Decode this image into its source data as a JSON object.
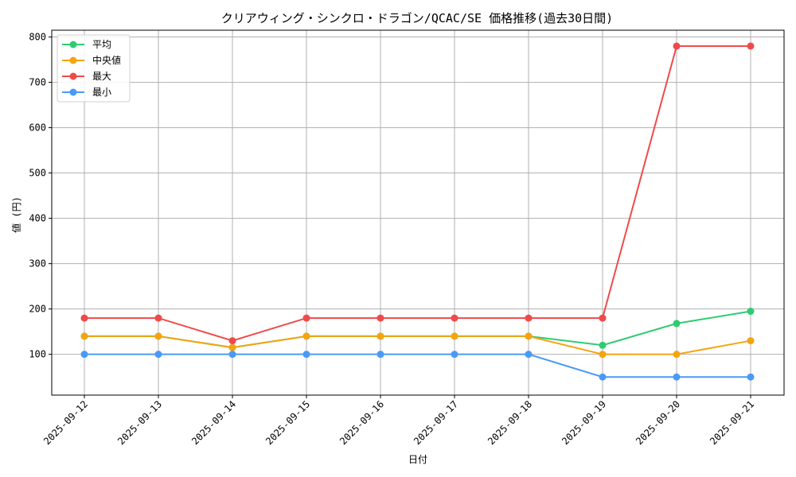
{
  "chart_data": {
    "type": "line",
    "title": "クリアウィング・シンクロ・ドラゴン/QCAC/SE 価格推移(過去30日間)",
    "xlabel": "日付",
    "ylabel": "値 (円)",
    "categories": [
      "2025-09-12",
      "2025-09-13",
      "2025-09-14",
      "2025-09-15",
      "2025-09-16",
      "2025-09-17",
      "2025-09-18",
      "2025-09-19",
      "2025-09-20",
      "2025-09-21"
    ],
    "ylim": [
      10,
      815
    ],
    "yticks": [
      100,
      200,
      300,
      400,
      500,
      600,
      700,
      800
    ],
    "grid": true,
    "legend_position": "top-left",
    "series": [
      {
        "name": "平均",
        "color": "#2ecc71",
        "values": [
          140,
          140,
          115,
          140,
          140,
          140,
          140,
          120,
          168,
          195
        ]
      },
      {
        "name": "中央値",
        "color": "#f5a30f",
        "values": [
          140,
          140,
          115,
          140,
          140,
          140,
          140,
          100,
          100,
          130
        ]
      },
      {
        "name": "最大",
        "color": "#ef4a4a",
        "values": [
          180,
          180,
          130,
          180,
          180,
          180,
          180,
          180,
          780,
          780
        ]
      },
      {
        "name": "最小",
        "color": "#4a9af5",
        "values": [
          100,
          100,
          100,
          100,
          100,
          100,
          100,
          50,
          50,
          50
        ]
      }
    ]
  }
}
